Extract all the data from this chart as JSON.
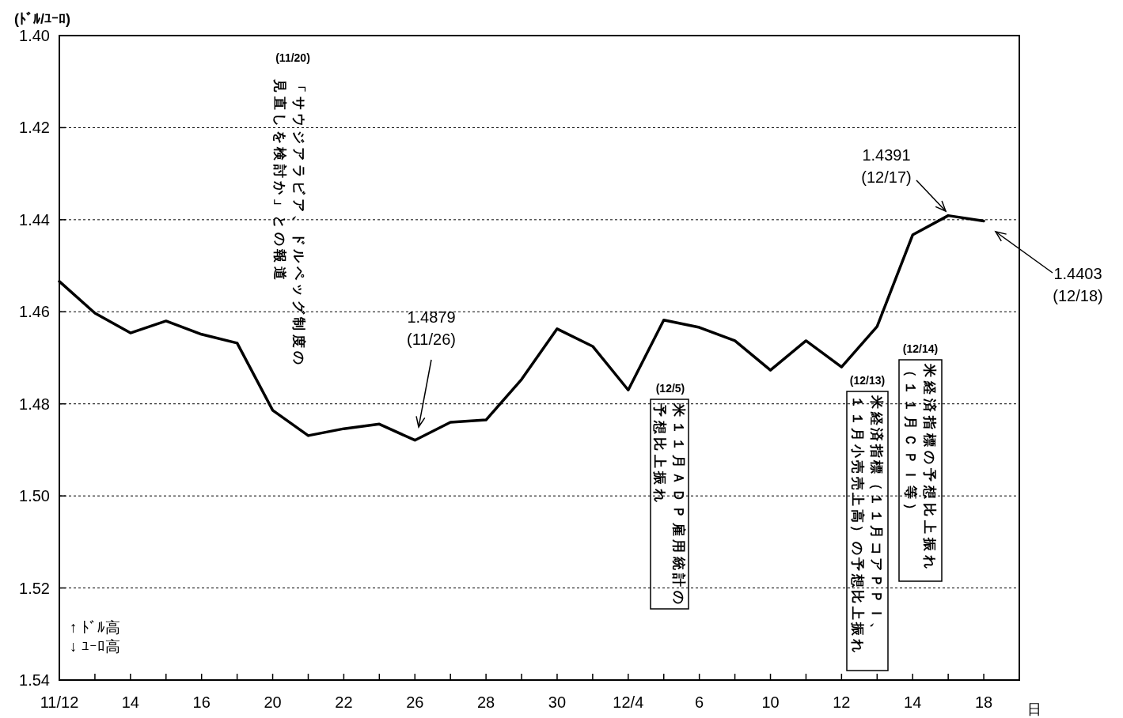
{
  "chart_data": {
    "type": "line",
    "ylabel": "(ﾄﾞﾙ/ﾕｰﾛ)",
    "xlabel": "日",
    "categories": [
      "11/12",
      null,
      "14",
      null,
      "16",
      null,
      "20",
      null,
      "22",
      null,
      "26",
      null,
      "28",
      null,
      "30",
      null,
      "12/4",
      null,
      "6",
      null,
      "10",
      null,
      "12",
      null,
      "14",
      null,
      "18",
      null
    ],
    "series": [
      {
        "color": "#000000",
        "values": [
          1.4534,
          1.4603,
          1.4646,
          1.462,
          1.4649,
          1.4668,
          1.4814,
          1.4869,
          1.4854,
          1.4844,
          1.4879,
          1.484,
          1.4835,
          1.4747,
          1.4637,
          1.4675,
          1.477,
          1.4618,
          1.4634,
          1.4663,
          1.4727,
          1.4663,
          1.472,
          1.4632,
          1.4433,
          1.4391,
          1.4403,
          null
        ]
      }
    ],
    "ylim": [
      1.54,
      1.4
    ],
    "yticks": [
      {
        "value": 1.4,
        "label": "1.40"
      },
      {
        "value": 1.42,
        "label": "1.42"
      },
      {
        "value": 1.44,
        "label": "1.44"
      },
      {
        "value": 1.46,
        "label": "1.46"
      },
      {
        "value": 1.48,
        "label": "1.48"
      },
      {
        "value": 1.5,
        "label": "1.50"
      },
      {
        "value": 1.52,
        "label": "1.52"
      },
      {
        "value": 1.54,
        "label": "1.54"
      }
    ],
    "grid": "y",
    "marker": "none",
    "line_style": "solid",
    "annotations": [
      "(11/20)",
      "「サウジアラビア、ドルペッグ制度の",
      "見直しを検討か」との報道",
      "1.4879\n(11/26)",
      "1.4391\n(12/17)",
      "1.4403\n(12/18)",
      "(12/5)",
      "米１１月ＡＤＰ雇用統計の",
      "予想比上振れ",
      "(12/13)",
      "米経済指標（１１月コアＰＰＩ、",
      "１１月小売売上高）の予想比上振れ",
      "(12/14)",
      "米経済指標の予想比上振れ",
      "（１１月ＣＰＩ等）",
      "↑ ﾄﾞﾙ高\n↓ ﾕｰﾛ高"
    ]
  }
}
